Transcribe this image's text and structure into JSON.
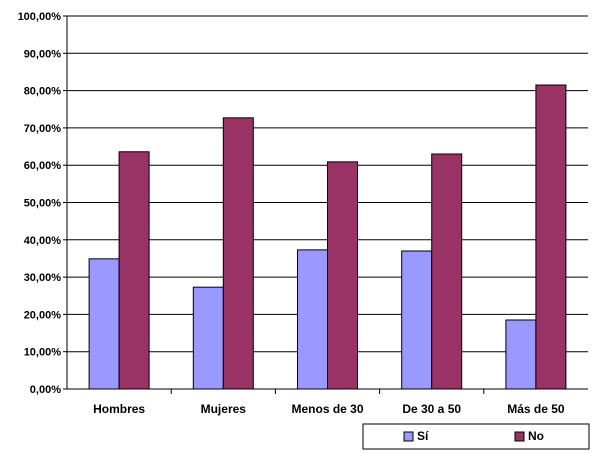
{
  "chart_data": {
    "type": "bar",
    "title": "",
    "xlabel": "",
    "ylabel": "",
    "categories": [
      "Hombres",
      "Mujeres",
      "Menos de 30",
      "De 30 a 50",
      "Más de 50"
    ],
    "series": [
      {
        "name": "Sí",
        "values": [
          34.9,
          27.3,
          37.3,
          37.0,
          18.5
        ],
        "color": "#9999FF"
      },
      {
        "name": "No",
        "values": [
          63.6,
          72.7,
          60.9,
          63.0,
          81.5
        ],
        "color": "#993366"
      }
    ],
    "ylim": [
      0,
      100
    ],
    "yticks": [
      "0,00%",
      "10,00%",
      "20,00%",
      "30,00%",
      "40,00%",
      "50,00%",
      "60,00%",
      "70,00%",
      "80,00%",
      "90,00%",
      "100,00%"
    ],
    "grid": true,
    "legend_position": "bottom-right"
  }
}
